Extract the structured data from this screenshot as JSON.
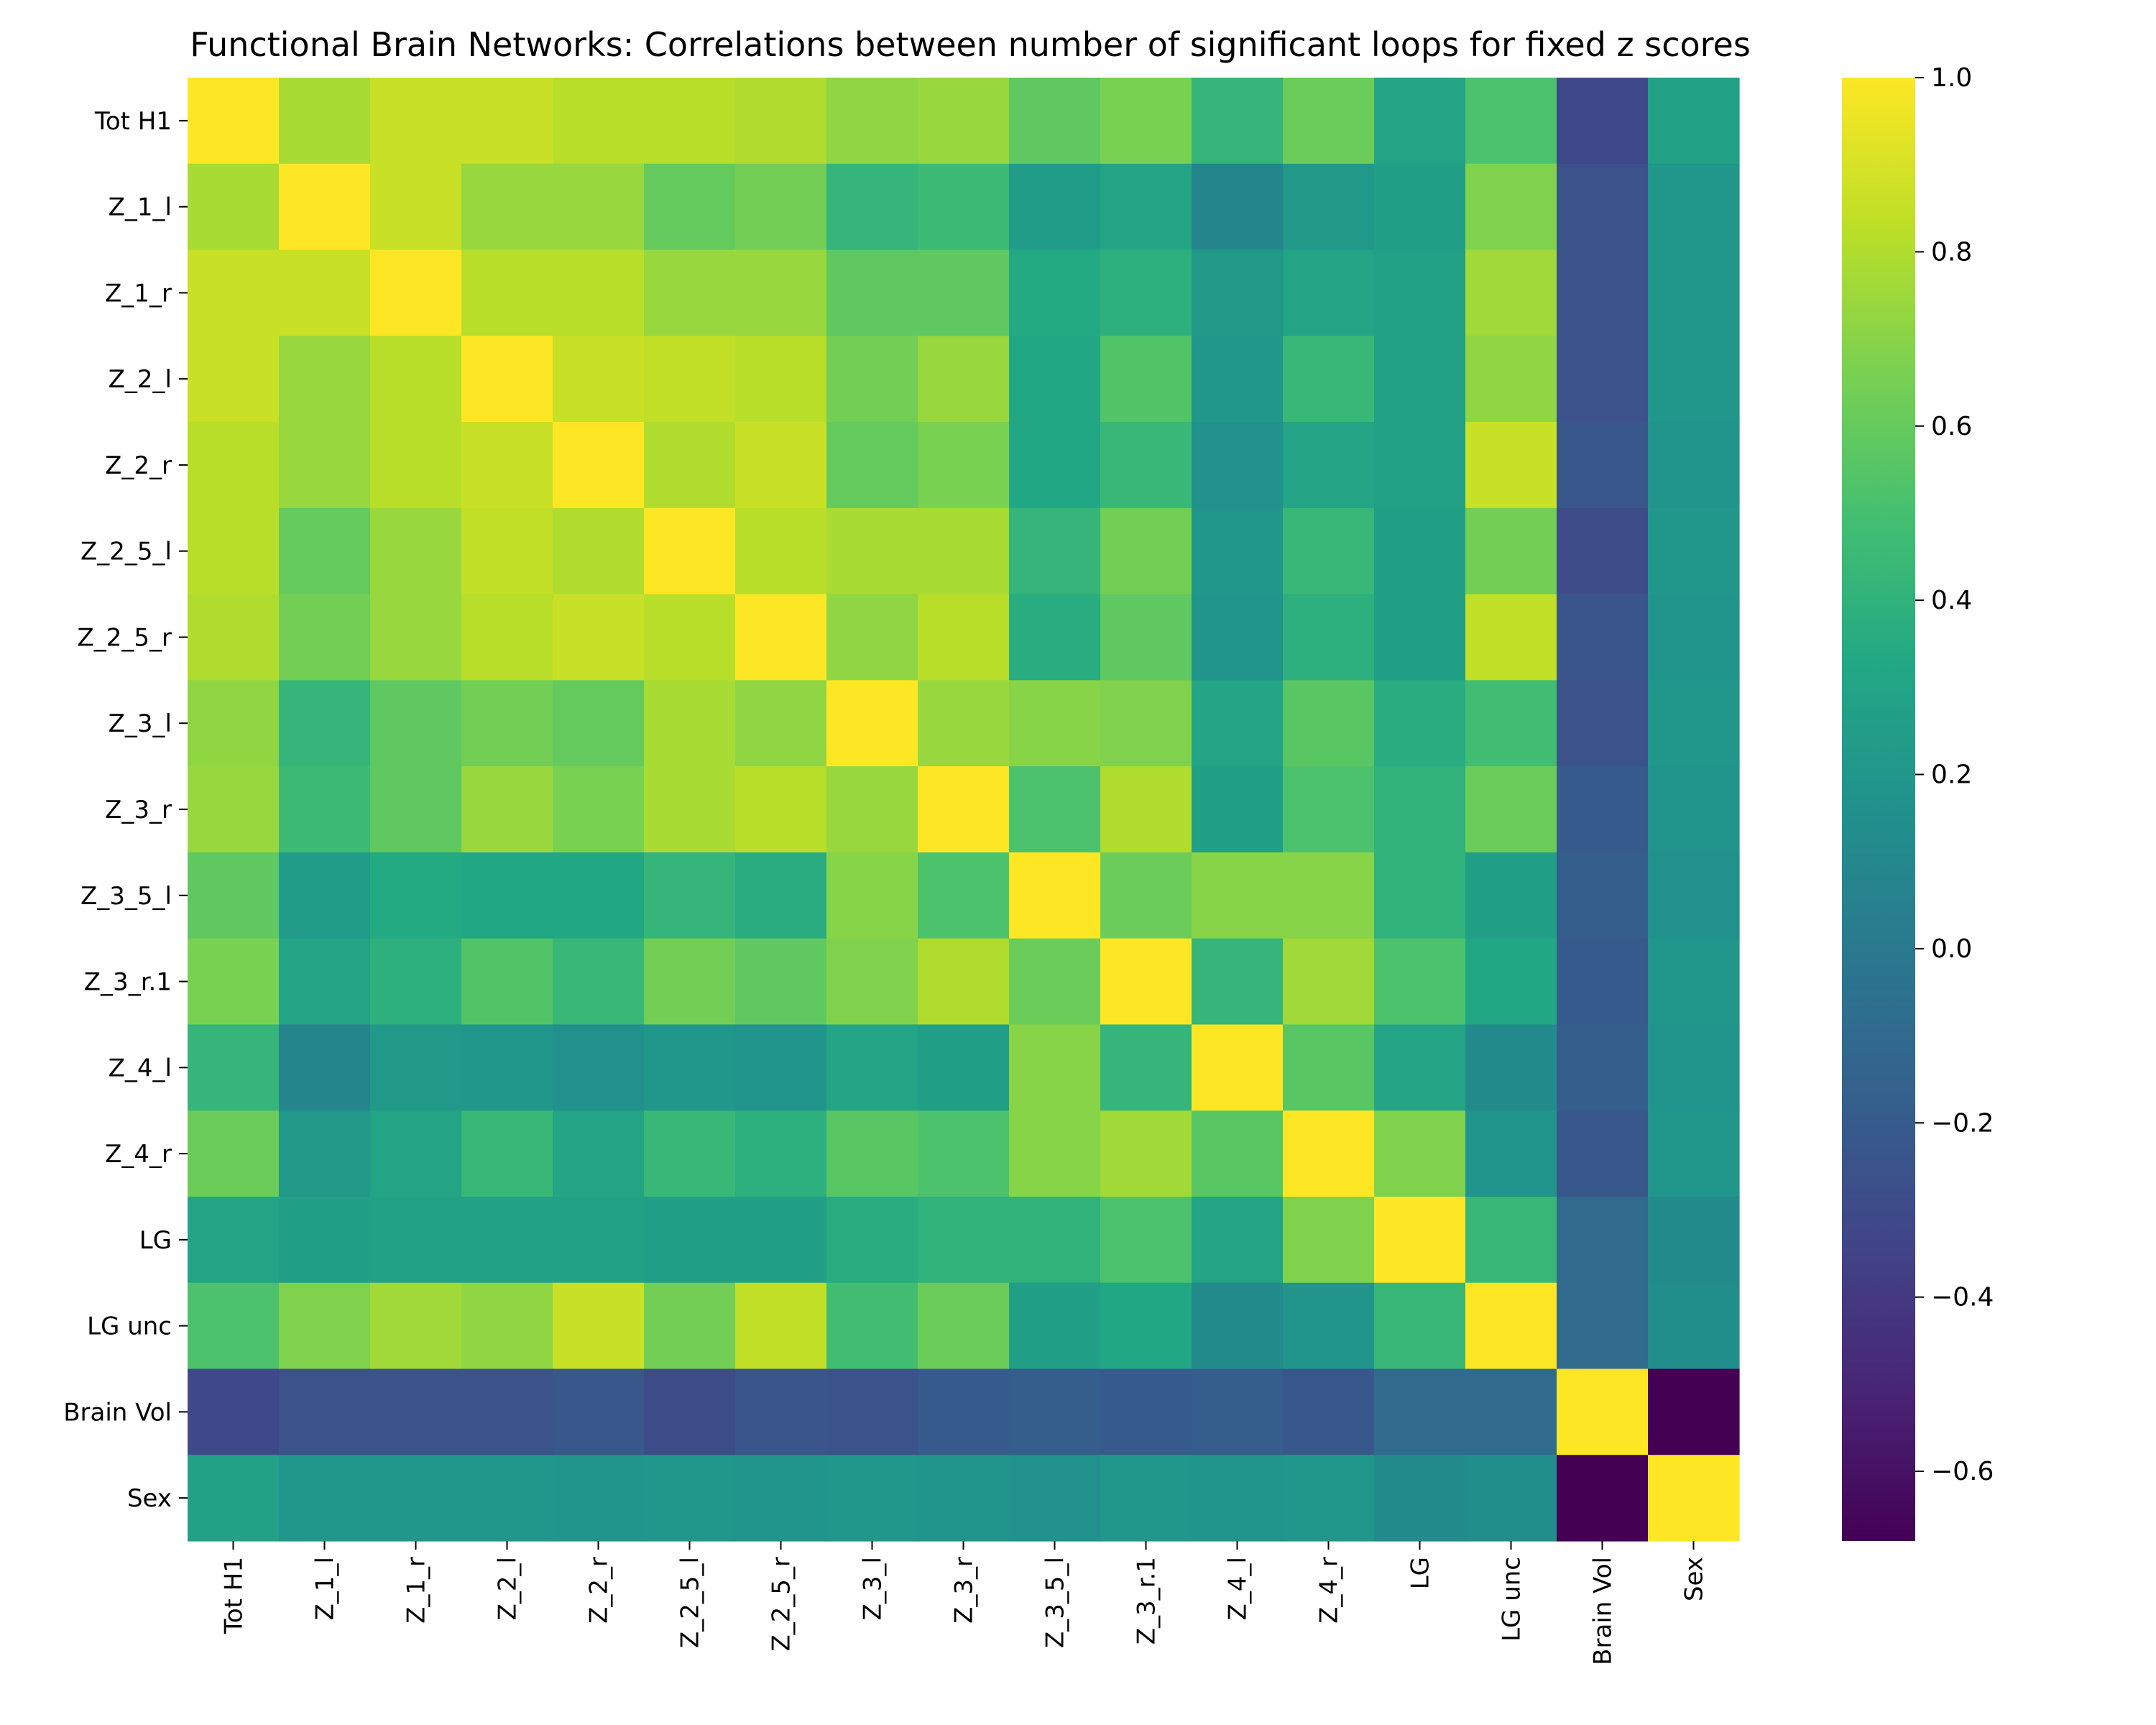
{
  "chart_data": {
    "type": "heatmap",
    "title": "Functional Brain Networks: Correlations between number of significant loops for fixed z scores",
    "labels": [
      "Tot H1",
      "Z_1_l",
      "Z_1_r",
      "Z_2_l",
      "Z_2_r",
      "Z_2_5_l",
      "Z_2_5_r",
      "Z_3_l",
      "Z_3_r",
      "Z_3_5_l",
      "Z_3_r.1",
      "Z_4_l",
      "Z_4_r",
      "LG",
      "LG unc",
      "Brain Vol",
      "Sex"
    ],
    "values": [
      [
        1.0,
        0.78,
        0.86,
        0.86,
        0.82,
        0.82,
        0.8,
        0.72,
        0.74,
        0.58,
        0.66,
        0.42,
        0.62,
        0.3,
        0.52,
        -0.32,
        0.28
      ],
      [
        0.78,
        1.0,
        0.86,
        0.74,
        0.74,
        0.6,
        0.64,
        0.42,
        0.46,
        0.24,
        0.3,
        0.08,
        0.22,
        0.26,
        0.68,
        -0.26,
        0.2
      ],
      [
        0.86,
        0.86,
        1.0,
        0.82,
        0.82,
        0.74,
        0.74,
        0.58,
        0.58,
        0.34,
        0.38,
        0.22,
        0.3,
        0.28,
        0.76,
        -0.26,
        0.2
      ],
      [
        0.86,
        0.74,
        0.82,
        1.0,
        0.86,
        0.84,
        0.82,
        0.64,
        0.74,
        0.32,
        0.54,
        0.2,
        0.44,
        0.28,
        0.72,
        -0.26,
        0.2
      ],
      [
        0.82,
        0.74,
        0.82,
        0.86,
        1.0,
        0.8,
        0.86,
        0.6,
        0.66,
        0.32,
        0.44,
        0.16,
        0.3,
        0.28,
        0.86,
        -0.22,
        0.18
      ],
      [
        0.82,
        0.6,
        0.74,
        0.84,
        0.8,
        1.0,
        0.82,
        0.78,
        0.78,
        0.42,
        0.64,
        0.2,
        0.44,
        0.26,
        0.64,
        -0.3,
        0.2
      ],
      [
        0.8,
        0.64,
        0.74,
        0.82,
        0.86,
        0.82,
        1.0,
        0.72,
        0.82,
        0.36,
        0.58,
        0.18,
        0.38,
        0.26,
        0.84,
        -0.24,
        0.18
      ],
      [
        0.72,
        0.42,
        0.58,
        0.64,
        0.6,
        0.78,
        0.72,
        1.0,
        0.74,
        0.7,
        0.68,
        0.3,
        0.56,
        0.36,
        0.48,
        -0.26,
        0.2
      ],
      [
        0.74,
        0.46,
        0.58,
        0.74,
        0.66,
        0.78,
        0.82,
        0.74,
        1.0,
        0.52,
        0.8,
        0.26,
        0.52,
        0.4,
        0.62,
        -0.2,
        0.18
      ],
      [
        0.58,
        0.24,
        0.34,
        0.32,
        0.32,
        0.42,
        0.36,
        0.7,
        0.52,
        1.0,
        0.62,
        0.7,
        0.7,
        0.4,
        0.26,
        -0.18,
        0.16
      ],
      [
        0.66,
        0.3,
        0.38,
        0.54,
        0.44,
        0.64,
        0.58,
        0.68,
        0.8,
        0.62,
        1.0,
        0.42,
        0.76,
        0.52,
        0.32,
        -0.2,
        0.2
      ],
      [
        0.42,
        0.08,
        0.22,
        0.2,
        0.16,
        0.2,
        0.18,
        0.3,
        0.26,
        0.7,
        0.42,
        1.0,
        0.56,
        0.3,
        0.12,
        -0.18,
        0.18
      ],
      [
        0.62,
        0.22,
        0.3,
        0.44,
        0.3,
        0.44,
        0.38,
        0.56,
        0.52,
        0.7,
        0.76,
        0.56,
        1.0,
        0.68,
        0.18,
        -0.22,
        0.2
      ],
      [
        0.3,
        0.26,
        0.28,
        0.28,
        0.28,
        0.26,
        0.26,
        0.36,
        0.4,
        0.4,
        0.52,
        0.3,
        0.68,
        1.0,
        0.44,
        -0.1,
        0.12
      ],
      [
        0.52,
        0.68,
        0.76,
        0.72,
        0.86,
        0.64,
        0.84,
        0.48,
        0.62,
        0.26,
        0.32,
        0.12,
        0.18,
        0.44,
        1.0,
        -0.1,
        0.14
      ],
      [
        -0.32,
        -0.26,
        -0.26,
        -0.26,
        -0.22,
        -0.3,
        -0.24,
        -0.26,
        -0.2,
        -0.18,
        -0.2,
        -0.18,
        -0.22,
        -0.1,
        -0.1,
        1.0,
        -0.68
      ],
      [
        0.28,
        0.2,
        0.2,
        0.2,
        0.18,
        0.2,
        0.18,
        0.2,
        0.18,
        0.16,
        0.2,
        0.18,
        0.2,
        0.12,
        0.14,
        -0.68,
        1.0
      ]
    ],
    "colormap": "viridis",
    "vmin": -0.68,
    "vmax": 1.0,
    "colorbar_ticks": [
      "1.0",
      "0.8",
      "0.6",
      "0.4",
      "0.2",
      "0.0",
      "−0.2",
      "−0.4",
      "−0.6"
    ],
    "colorbar_tick_values": [
      1.0,
      0.8,
      0.6,
      0.4,
      0.2,
      0.0,
      -0.2,
      -0.4,
      -0.6
    ],
    "grid": false,
    "colorbar_placement": "right"
  }
}
